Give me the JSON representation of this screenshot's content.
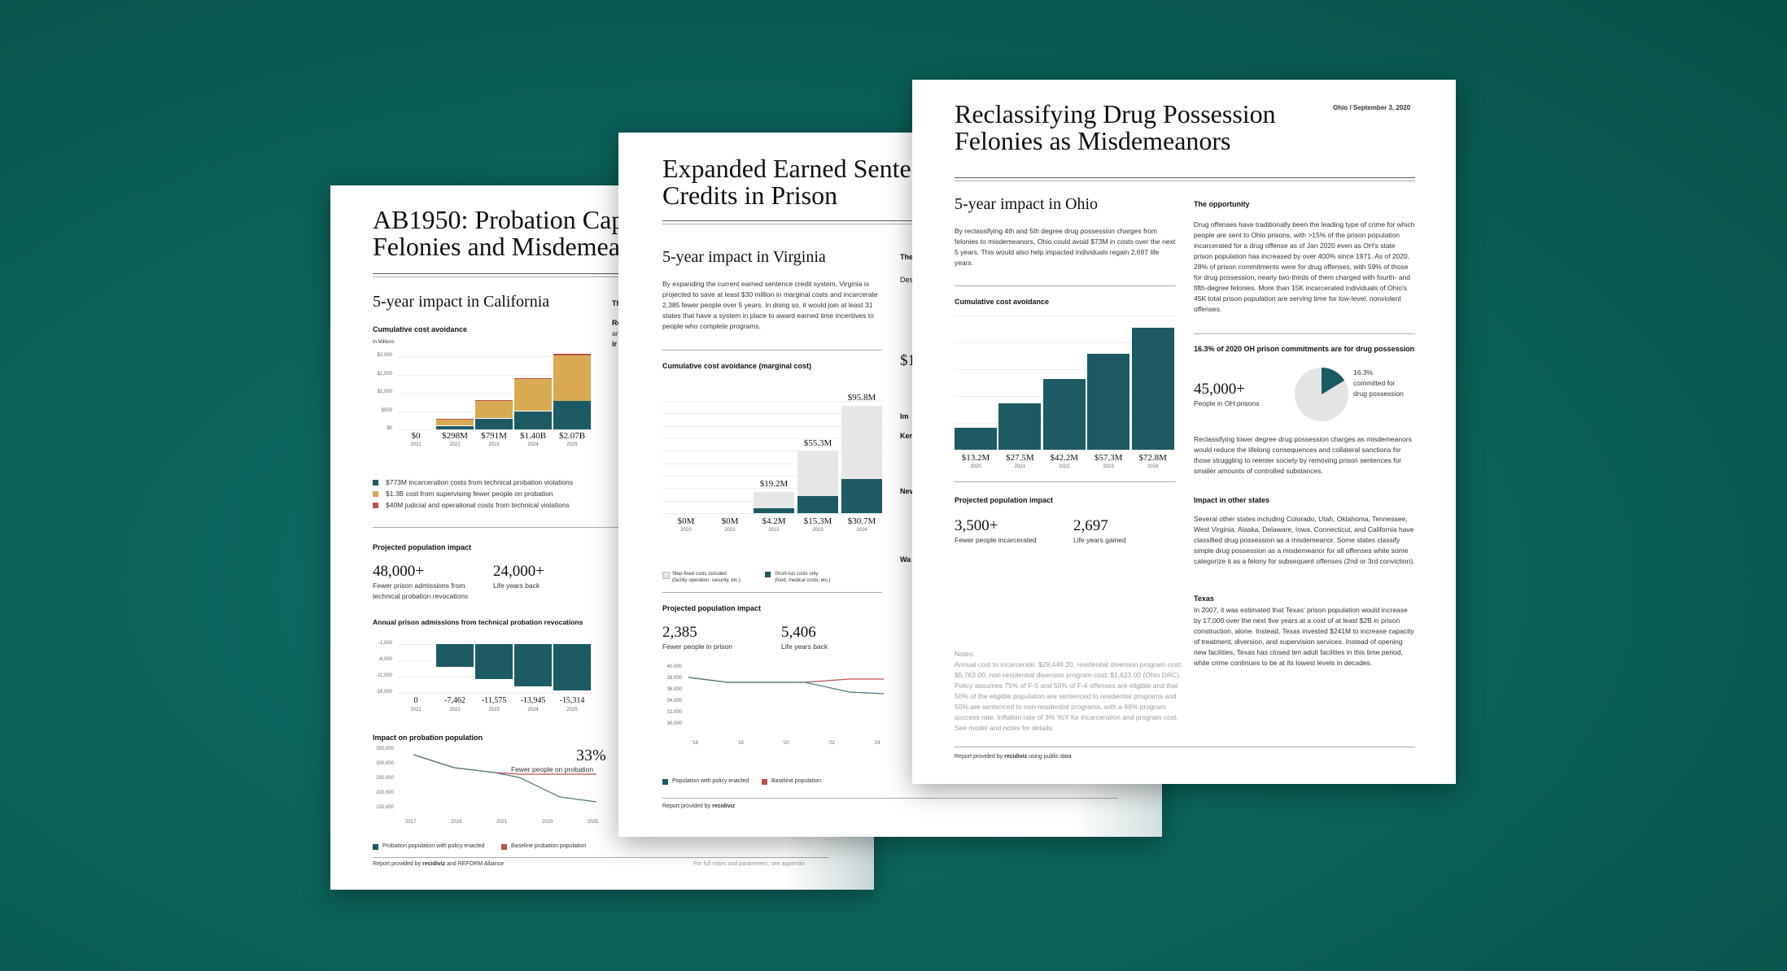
{
  "ca": {
    "title_l1": "AB1950: Probation Cap",
    "title_l2": "Felonies and Misdemea",
    "impact": "5-year impact in California",
    "cost_label": "Cumulative cost avoidance",
    "in_millions": "In Millions",
    "y_ticks": [
      "$2,000",
      "$1,500",
      "$1,000",
      "$500",
      "$0"
    ],
    "chart_data": {
      "type": "bar",
      "categories": [
        "2021",
        "2022",
        "2023",
        "2024",
        "2025"
      ],
      "totals": [
        "$0",
        "$298M",
        "$791M",
        "$1.40B",
        "$2.07B"
      ],
      "series": [
        {
          "name": "$773M incarceration costs from technical probation violations",
          "values": [
            0,
            100,
            300,
            500,
            773
          ]
        },
        {
          "name": "$1.3B cost from supervising fewer people on probation",
          "values": [
            0,
            190,
            480,
            870,
            1257
          ]
        },
        {
          "name": "$40M judicial and operational costs from technical violations",
          "values": [
            0,
            8,
            11,
            30,
            40
          ]
        }
      ]
    },
    "pop_label": "Projected population impact",
    "stat1_num": "48,000+",
    "stat1_l1": "Fewer prison admissions from",
    "stat1_l2": "technical probation revocations",
    "stat2_num": "24,000+",
    "stat2_l1": "Life years back",
    "adm_label": "Annual prison admissions from technical probation revocations",
    "adm_ticks": [
      "-1,000",
      "-6,000",
      "-11,000",
      "-16,000"
    ],
    "adm_chart": {
      "type": "bar",
      "categories": [
        "2021",
        "2022",
        "2023",
        "2024",
        "2025"
      ],
      "values": [
        0,
        -7462,
        -11575,
        -13945,
        -15314
      ],
      "labels": [
        "0",
        "-7,462",
        "-11,575",
        "-13,945",
        "-15,314"
      ]
    },
    "prob_label": "Impact on probation population",
    "prob_ticks": [
      "350,000",
      "300,000",
      "250,000",
      "200,000",
      "150,000"
    ],
    "prob_x": [
      "2017",
      "2019",
      "2021",
      "2023",
      "2025"
    ],
    "prob_pct": "33%",
    "prob_note": "Fewer people on probation",
    "legend_a": "Probation population with policy enacted",
    "legend_b": "Baseline probation population",
    "footer": "Report provided by",
    "footer_brand": "recidiviz",
    "footer_rest": "and REFORM Alliance",
    "footer_right": "For full notes and parameters, see appendix",
    "opp_l1": "Th",
    "opp_l2": "Re",
    "opp_l3": "an",
    "opp_l4": "ir"
  },
  "va": {
    "title_l1": "Expanded Earned Sente",
    "title_l2": "Credits in Prison",
    "impact": "5-year impact in Virginia",
    "body": "By expanding the current earned sentence credit system, Virginia is projected to save at least $30 million in marginal costs and incarcerate 2,385 fewer people over 5 years. In doing so, it would join at least 31 states that have a system in place to award earned time incentives to people who complete programs.",
    "cost_label": "Cumulative cost avoidance (marginal cost)",
    "chart_data": {
      "type": "bar",
      "categories": [
        "2020",
        "2021",
        "2022",
        "2023",
        "2024"
      ],
      "top_labels": [
        "",
        "",
        "$19.2M",
        "$55.3M",
        "$95.8M"
      ],
      "bottom_labels": [
        "$0M",
        "$0M",
        "$4.2M",
        "$15.3M",
        "$30.7M"
      ],
      "series": [
        {
          "name": "Step-fixed costs included (facility operation, security, etc.)",
          "values": [
            0,
            0,
            19.2,
            55.3,
            95.8
          ]
        },
        {
          "name": "Short-run costs only (food, medical costs, etc.)",
          "values": [
            0,
            0,
            4.2,
            15.3,
            30.7
          ]
        }
      ]
    },
    "legend_a_l1": "Step-fixed costs included",
    "legend_a_l2": "(facility operation, security, etc.)",
    "legend_b_l1": "Short-run costs only",
    "legend_b_l2": "(food, medical costs, etc.)",
    "pop_label": "Projected population impact",
    "stat1_num": "2,385",
    "stat1_l1": "Fewer people in prison",
    "stat2_num": "5,406",
    "stat2_l1": "Life years back",
    "pop_ticks": [
      "40,000",
      "38,000",
      "36,000",
      "34,000",
      "32,000",
      "30,000"
    ],
    "pop_x": [
      "'18",
      "'18",
      "'20",
      "'22",
      "'24"
    ],
    "legend_c": "Population with policy enacted",
    "legend_d": "Baseline population",
    "footer": "Report provided by",
    "footer_brand": "recidiviz",
    "side_1": "The",
    "side_2": "Des",
    "side_3": "$1",
    "side_4": "Im",
    "side_5": "Ker",
    "side_6": "Nev",
    "side_7": "Wa"
  },
  "oh": {
    "title_l1": "Reclassifying Drug Possession",
    "title_l2": "Felonies as Misdemeanors",
    "meta_state": "Ohio /",
    "meta_date": "September 3, 2020",
    "impact": "5-year impact in Ohio",
    "body": "By reclassifying 4th and 5th degree drug possession charges from felonies to misdemeanors, Ohio could avoid $73M in costs over the next 5 years. This would also help impacted individuals regain 2,697 life years.",
    "cost_label": "Cumulative cost avoidance",
    "chart_data": {
      "type": "bar",
      "categories": [
        "2020",
        "2021",
        "2022",
        "2023",
        "2024"
      ],
      "values": [
        13.2,
        27.5,
        42.2,
        57.3,
        72.8
      ],
      "labels": [
        "$13.2M",
        "$27.5M",
        "$42.2M",
        "$57.3M",
        "$72.8M"
      ],
      "ymax": 80
    },
    "pop_label": "Projected population impact",
    "stat1_num": "3,500+",
    "stat1_l1": "Fewer people incarcerated",
    "stat2_num": "2,697",
    "stat2_l1": "Life years gained",
    "notes_label": "Notes:",
    "notes": "Annual cost to incarcerate: $29,448.20, residential diversion program cost: $5,763.00, non-residential diversion program cost: $1,623.00 (Ohio DRC). Policy assumes 75% of F-5 and 50% of F-4 offenses are eligible and that 50% of the eligible population are sentenced to residential programs and 50% are sentenced to non-residential programs, with a 66% program success rate. Inflation rate of 3% YoY for incarceration and program cost. See model and notes for details.",
    "footer": "Report provided by",
    "footer_brand": "recidiviz",
    "footer_rest": "using public data",
    "opp_label": "The opportunity",
    "opp_body": "Drug offenses have traditionally been the leading type of crime for which people are sent to Ohio prisons, with >15% of the prison population incarcerated for a drug offense as of Jan 2020 even as OH's state prison population has increased by over 400% since 1971. As of 2020, 28% of prison commitments were for drug offenses, with 59% of those for drug possession, nearly two-thirds of them charged with fourth- and fifth-degree felonies. More than 15K incarcerated individuals of Ohio's 45K total prison population are serving time for low-level, nonviolent offenses.",
    "pie_label": "16.3% of 2020 OH prison commitments are for drug possession",
    "pie_num": "45,000+",
    "pie_num_l1": "People in OH prisons",
    "pie_chart": {
      "type": "pie",
      "values": [
        16.3,
        83.7
      ]
    },
    "pie_pct": "16.3%",
    "pie_note_l1": "committed for",
    "pie_note_l2": "drug possession",
    "reclass_body": "Reclassifying lower degree drug possession charges as misdemeanors would reduce the lifelong consequences and collateral sanctions for those struggling to reenter society by removing prison sentences for smaller amounts of controlled substances.",
    "other_label": "Impact in other states",
    "other_body": "Several other states including Colorado, Utah, Oklahoma, Tennessee, West Virginia, Alaska, Delaware, Iowa, Connecticut, and California have classified drug possession as a misdemeanor. Some states classify simple drug possession as a misdemeanor for all offenses while some categorize it as a felony for subsequent offenses (2nd or 3rd conviction).",
    "texas_label": "Texas",
    "texas_body": "In 2007, it was estimated that Texas' prison population would increase by 17,000 over the next five years at a cost of at least $2B in prison construction, alone. Instead, Texas invested $241M to increase capacity of treatment, diversion, and supervision services. Instead of opening new facilities, Texas has closed ten adult facilities in this time period, while crime continues to be at its lowest levels in decades."
  },
  "colors": {
    "teal": "#1c5a64",
    "gold": "#d8ab52",
    "red": "#c0504d",
    "bg": "#0b5f58"
  }
}
